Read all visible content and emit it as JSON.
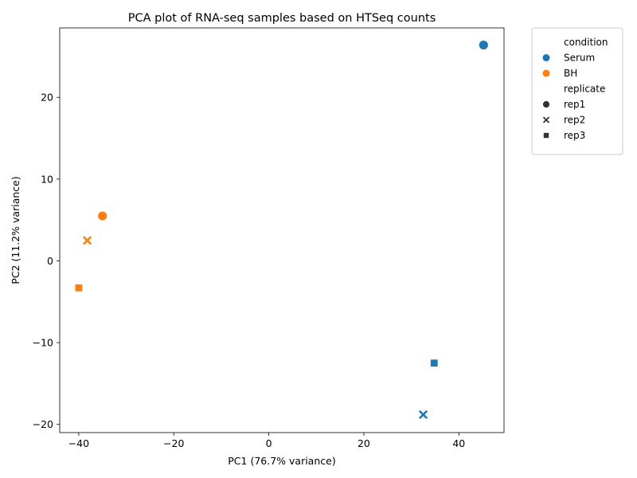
{
  "chart_data": {
    "type": "scatter",
    "title": "PCA plot of RNA-seq samples based on HTSeq counts",
    "xlabel": "PC1 (76.7% variance)",
    "ylabel": "PC2 (11.2% variance)",
    "xlim": [
      -44,
      49.5
    ],
    "ylim": [
      -21,
      28.5
    ],
    "xticks": [
      -40,
      -20,
      0,
      20,
      40
    ],
    "yticks": [
      -20,
      -10,
      0,
      10,
      20
    ],
    "xtick_labels": [
      "−40",
      "−20",
      "0",
      "20",
      "40"
    ],
    "ytick_labels": [
      "−20",
      "−10",
      "0",
      "10",
      "20"
    ],
    "grid": false,
    "legend": {
      "placement": "outside-top-right",
      "hue_title": "condition",
      "conditions": [
        {
          "name": "Serum",
          "color": "#1f77b4"
        },
        {
          "name": "BH",
          "color": "#ff7f0e"
        }
      ],
      "style_title": "replicate",
      "replicates": [
        {
          "name": "rep1",
          "marker": "circle"
        },
        {
          "name": "rep2",
          "marker": "x"
        },
        {
          "name": "rep3",
          "marker": "square"
        }
      ]
    },
    "points": [
      {
        "condition": "Serum",
        "replicate": "rep1",
        "x": 45.2,
        "y": 26.4
      },
      {
        "condition": "Serum",
        "replicate": "rep2",
        "x": 32.5,
        "y": -18.8
      },
      {
        "condition": "Serum",
        "replicate": "rep3",
        "x": 34.8,
        "y": -12.5
      },
      {
        "condition": "BH",
        "replicate": "rep1",
        "x": -35.0,
        "y": 5.5
      },
      {
        "condition": "BH",
        "replicate": "rep2",
        "x": -38.2,
        "y": 2.5
      },
      {
        "condition": "BH",
        "replicate": "rep3",
        "x": -40.0,
        "y": -3.3
      }
    ]
  }
}
